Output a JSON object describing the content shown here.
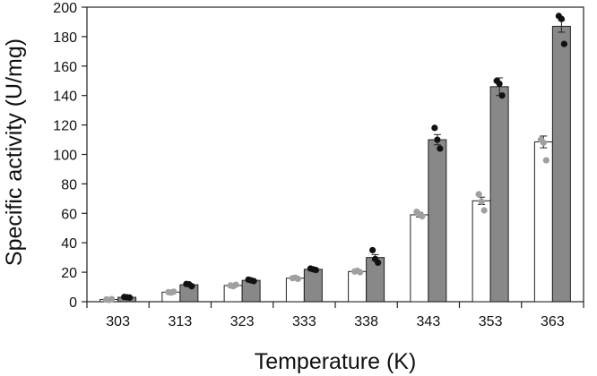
{
  "chart_data": {
    "type": "bar",
    "title": "",
    "xlabel": "Temperature (K)",
    "ylabel": "Specific activity (U/mg)",
    "categories": [
      "303",
      "313",
      "323",
      "333",
      "338",
      "343",
      "353",
      "363"
    ],
    "ylim": [
      0,
      200
    ],
    "yticks": [
      0,
      20,
      40,
      60,
      80,
      100,
      120,
      140,
      160,
      180,
      200
    ],
    "grid": false,
    "legend": "none",
    "series": [
      {
        "fill": "#ffffff",
        "point_color": "#a0a0a0",
        "values": [
          1.5,
          6.5,
          11,
          16,
          20.5,
          59,
          68.5,
          108.5
        ],
        "errors": [
          0.3,
          0.5,
          0.6,
          0.6,
          0.8,
          1.5,
          2.5,
          4
        ],
        "points": [
          [
            1.5,
            1.8,
            1.2
          ],
          [
            6.5,
            6.8,
            6.2
          ],
          [
            11,
            11.5,
            10.5
          ],
          [
            16,
            15.5,
            16.3
          ],
          [
            20.5,
            20,
            21
          ],
          [
            61,
            58,
            59.5
          ],
          [
            73,
            62,
            68
          ],
          [
            110,
            96,
            108
          ]
        ]
      },
      {
        "fill": "#888888",
        "point_color": "#111111",
        "values": [
          3,
          11.5,
          14.5,
          22,
          30,
          110,
          146,
          187
        ],
        "errors": [
          0.4,
          0.8,
          0.6,
          0.7,
          2,
          3.5,
          6,
          4
        ],
        "points": [
          [
            3.2,
            2.8,
            3
          ],
          [
            12,
            10.5,
            11.8
          ],
          [
            15,
            14,
            14.5
          ],
          [
            22.5,
            21.5,
            22
          ],
          [
            35,
            26.5,
            29
          ],
          [
            118,
            104,
            110
          ],
          [
            150,
            140,
            148
          ],
          [
            194,
            175,
            192
          ]
        ]
      }
    ]
  }
}
